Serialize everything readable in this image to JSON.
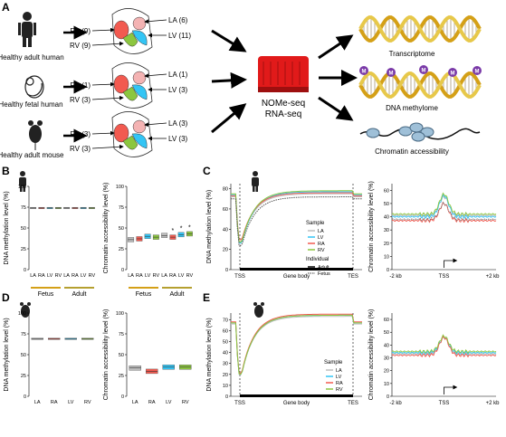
{
  "panels": {
    "A": "A",
    "B": "B",
    "C": "C",
    "D": "D",
    "E": "E"
  },
  "sources": [
    {
      "label": "Healthy adult human",
      "RA": "RA (9)",
      "RV": "RV (9)",
      "LA": "LA (6)",
      "LV": "LV (11)"
    },
    {
      "label": "Healthy fetal human",
      "RA": "RA (1)",
      "RV": "RV (3)",
      "LA": "LA (1)",
      "LV": "LV (3)"
    },
    {
      "label": "Healthy adult mouse",
      "RA": "RA (3)",
      "RV": "RV (3)",
      "LA": "LA (3)",
      "LV": "LV (3)"
    }
  ],
  "machine": {
    "line1": "NOMe-seq",
    "line2": "RNA-seq"
  },
  "outputs": {
    "transcriptome": "Transcriptome",
    "methylome": "DNA methylome",
    "accessibility": "Chromatin accessibility",
    "m": "M"
  },
  "colors": {
    "LA": "#bdbdbd",
    "LV": "#33c5f5",
    "RA": "#f25a50",
    "RV": "#8cc63f",
    "gold": "#d4a017",
    "machine": "#e11a1a"
  },
  "chart_data": [
    {
      "id": "B-methylation",
      "type": "box",
      "ylabel": "DNA methylation level (%)",
      "ylim": [
        0,
        100
      ],
      "yticks": [
        0,
        25,
        50,
        75,
        100
      ],
      "categories": [
        "LA",
        "RA",
        "LV",
        "RV",
        "LA",
        "RA",
        "LV",
        "RV"
      ],
      "groups": [
        "Fetus",
        "Adult"
      ],
      "values": [
        74,
        74,
        74,
        74,
        74,
        74,
        74,
        74
      ]
    },
    {
      "id": "B-accessibility",
      "type": "box",
      "ylabel": "Chromatin accessibility level (%)",
      "ylim": [
        0,
        100
      ],
      "yticks": [
        0,
        25,
        50,
        75,
        100
      ],
      "categories": [
        "LA",
        "RA",
        "LV",
        "RV",
        "LA",
        "RA",
        "LV",
        "RV"
      ],
      "groups": [
        "Fetus",
        "Adult"
      ],
      "values": [
        36,
        37,
        40,
        39,
        41,
        39,
        42,
        43
      ],
      "stars": [
        "*",
        "*",
        "*"
      ]
    },
    {
      "id": "C-methylation",
      "type": "line",
      "ylabel": "DNA methylation level (%)",
      "yticks": [
        0,
        20,
        40,
        60,
        80
      ],
      "xticks": [
        "TSS",
        "Gene body",
        "TES"
      ],
      "legend": {
        "sample_title": "Sample",
        "samples": [
          "LA",
          "LV",
          "RA",
          "RV"
        ],
        "individual_title": "Individual",
        "individuals": [
          "Adult",
          "Fetus"
        ]
      }
    },
    {
      "id": "C-accessibility",
      "type": "line",
      "ylabel": "Chromatin accessibility level (%)",
      "yticks": [
        0,
        10,
        20,
        30,
        40,
        50,
        60
      ],
      "xticks": [
        "-2 kb",
        "TSS",
        "+2 kb"
      ]
    },
    {
      "id": "D-methylation",
      "type": "box",
      "ylabel": "DNA methylation level (%)",
      "ylim": [
        0,
        100
      ],
      "yticks": [
        0,
        25,
        50,
        75,
        100
      ],
      "categories": [
        "LA",
        "RA",
        "LV",
        "RV"
      ],
      "values": [
        69,
        69,
        69,
        69
      ]
    },
    {
      "id": "D-accessibility",
      "type": "box",
      "ylabel": "Chromatin accessibility level (%)",
      "ylim": [
        0,
        100
      ],
      "yticks": [
        0,
        25,
        50,
        75,
        100
      ],
      "categories": [
        "LA",
        "RA",
        "LV",
        "RV"
      ],
      "values": [
        34,
        30,
        35,
        35
      ]
    },
    {
      "id": "E-methylation",
      "type": "line",
      "ylabel": "DNA methylation level (%)",
      "yticks": [
        0,
        10,
        20,
        30,
        40,
        50,
        60,
        70
      ],
      "xticks": [
        "TSS",
        "Gene body",
        "TES"
      ],
      "legend": {
        "sample_title": "Sample",
        "samples": [
          "LA",
          "LV",
          "RA",
          "RV"
        ]
      }
    },
    {
      "id": "E-accessibility",
      "type": "line",
      "ylabel": "Chromatin accessibility level (%)",
      "yticks": [
        0,
        10,
        20,
        30,
        40,
        50,
        60
      ],
      "xticks": [
        "-2 kb",
        "TSS",
        "+2 kb"
      ]
    }
  ]
}
